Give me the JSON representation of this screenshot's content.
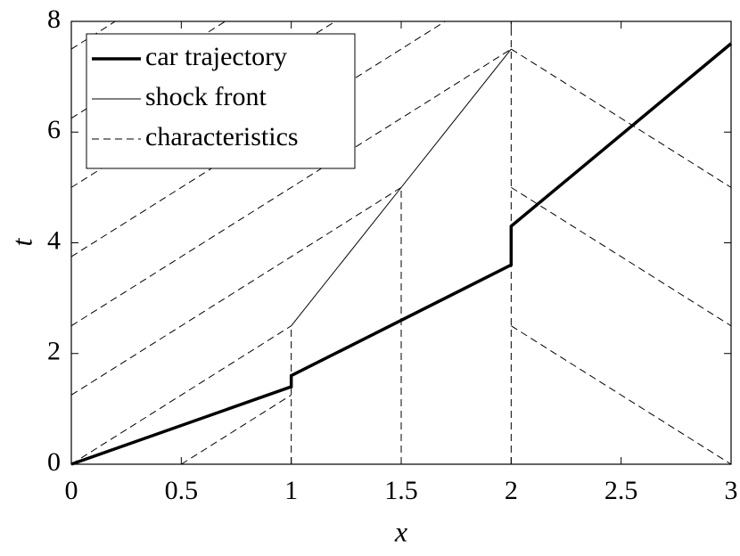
{
  "chart_data": {
    "type": "line",
    "x_label": "x",
    "y_label": "t",
    "xlim": [
      0,
      3
    ],
    "ylim": [
      0,
      8
    ],
    "xticks": [
      0,
      0.5,
      1,
      1.5,
      2,
      2.5,
      3
    ],
    "yticks": [
      0,
      2,
      4,
      6,
      8
    ],
    "legend": "upper left",
    "series": [
      {
        "name": "car trajectory",
        "color": "#000000",
        "width": 3.5,
        "dash": "none",
        "x": [
          0,
          1,
          1,
          2,
          2,
          3
        ],
        "values": [
          0,
          1.4,
          1.6,
          3.6,
          4.3,
          7.6
        ]
      },
      {
        "name": "shock front",
        "color": "#000000",
        "width": 1,
        "dash": "none",
        "x": [
          1,
          1.5,
          2
        ],
        "values": [
          2.5,
          5,
          7.5
        ]
      },
      {
        "name": "characteristics",
        "color": "#000000",
        "width": 1,
        "dash": "8 5",
        "x": [
          0.5,
          1,
          null,
          0,
          1,
          null,
          0,
          1.5,
          null,
          0,
          2,
          null,
          0,
          1.7,
          null,
          0,
          1.2,
          null,
          0,
          0.7,
          null,
          0,
          0.2,
          null,
          1,
          1,
          null,
          1.5,
          1.5,
          null,
          2,
          2,
          null,
          2,
          3,
          null,
          2,
          3,
          null,
          2,
          3
        ],
        "values": [
          0,
          1.25,
          null,
          0,
          2.5,
          null,
          1.25,
          5,
          null,
          2.5,
          7.5,
          null,
          3.75,
          8,
          null,
          5,
          8,
          null,
          6.25,
          8,
          null,
          7.5,
          8,
          null,
          0,
          2.5,
          null,
          0,
          5,
          null,
          0,
          8,
          null,
          7.5,
          5,
          null,
          5,
          2.5,
          null,
          2.5,
          0
        ]
      }
    ]
  }
}
